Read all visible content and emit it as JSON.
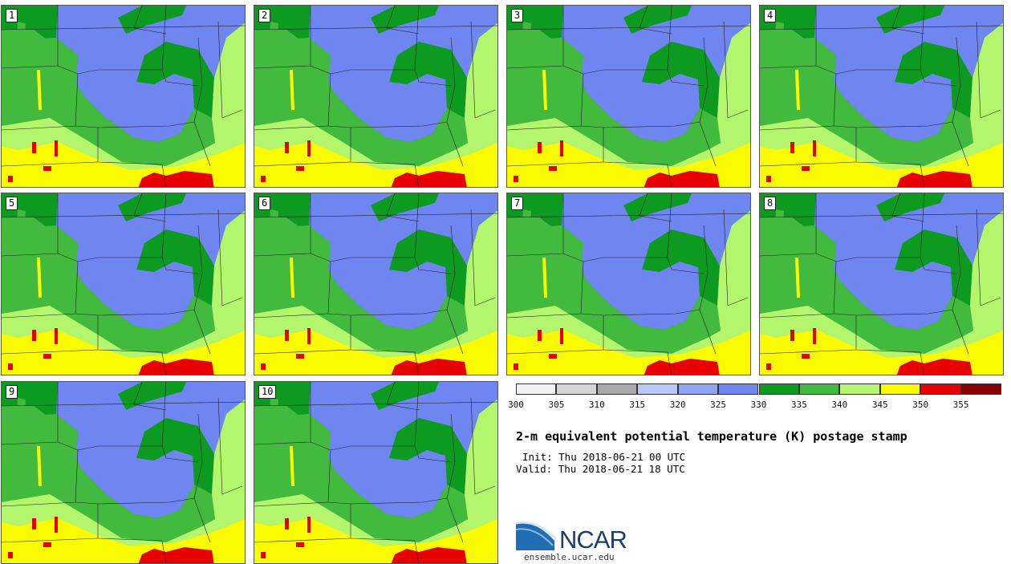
{
  "panels": [
    {
      "label": "1"
    },
    {
      "label": "2"
    },
    {
      "label": "3"
    },
    {
      "label": "4"
    },
    {
      "label": "5"
    },
    {
      "label": "6"
    },
    {
      "label": "7"
    },
    {
      "label": "8"
    },
    {
      "label": "9"
    },
    {
      "label": "10"
    }
  ],
  "colorbar": {
    "segments": [
      {
        "from": 300,
        "to": 305,
        "color": "#f1f1f1"
      },
      {
        "from": 305,
        "to": 310,
        "color": "#d5d5d5"
      },
      {
        "from": 310,
        "to": 315,
        "color": "#a9a9a9"
      },
      {
        "from": 315,
        "to": 320,
        "color": "#b9c8f8"
      },
      {
        "from": 320,
        "to": 325,
        "color": "#8ea4f4"
      },
      {
        "from": 325,
        "to": 330,
        "color": "#6f86f0"
      },
      {
        "from": 330,
        "to": 335,
        "color": "#0c9a20"
      },
      {
        "from": 335,
        "to": 340,
        "color": "#42ba3e"
      },
      {
        "from": 340,
        "to": 345,
        "color": "#b4f56e"
      },
      {
        "from": 345,
        "to": 350,
        "color": "#fafa00"
      },
      {
        "from": 350,
        "to": 355,
        "color": "#e60000"
      },
      {
        "from": 355,
        "to": 360,
        "color": "#8a0000"
      }
    ],
    "tick_labels": [
      "300",
      "305",
      "310",
      "315",
      "320",
      "325",
      "330",
      "335",
      "340",
      "345",
      "350",
      "355"
    ]
  },
  "title": "2-m equivalent potential temperature (K) postage stamp",
  "init": "Init: Thu 2018-06-21 00 UTC",
  "valid": "Valid: Thu 2018-06-21 18 UTC",
  "logo": {
    "text": "NCAR",
    "site": "ensemble.ucar.edu",
    "color": "#1d3d6e"
  }
}
